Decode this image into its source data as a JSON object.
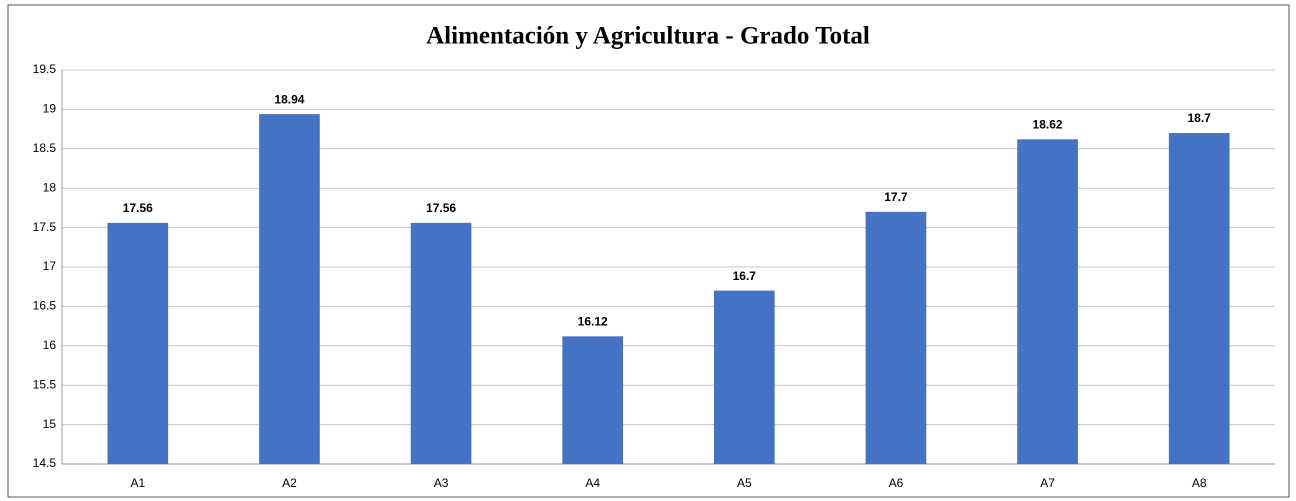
{
  "chart_data": {
    "type": "bar",
    "title": "Alimentación y Agricultura - Grado Total",
    "categories": [
      "A1",
      "A2",
      "A3",
      "A4",
      "A5",
      "A6",
      "A7",
      "A8"
    ],
    "values": [
      17.56,
      18.94,
      17.56,
      16.12,
      16.7,
      17.7,
      18.62,
      18.7
    ],
    "color": "#4472c4",
    "ylim": [
      14.5,
      19.5
    ],
    "yticks": [
      14.5,
      15,
      15.5,
      16,
      16.5,
      17,
      17.5,
      18,
      18.5,
      19,
      19.5
    ],
    "grid": true
  }
}
